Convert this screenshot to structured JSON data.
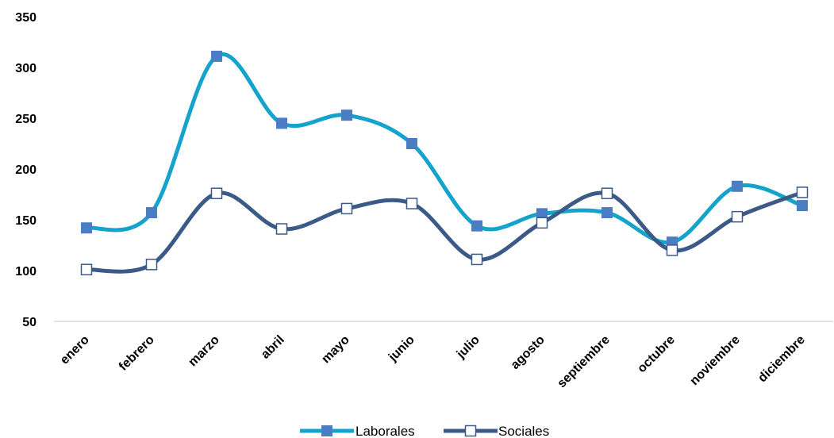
{
  "chart_data": {
    "type": "line",
    "title": "",
    "xlabel": "",
    "ylabel": "",
    "categories": [
      "enero",
      "febrero",
      "marzo",
      "abril",
      "mayo",
      "junio",
      "julio",
      "agosto",
      "septiembre",
      "octubre",
      "noviembre",
      "diciembre"
    ],
    "series": [
      {
        "name": "Laborales",
        "color": "#13A3CC",
        "marker": "filled-square",
        "marker_color": "#4A7DC4",
        "values": [
          142,
          157,
          311,
          245,
          253,
          225,
          144,
          156,
          157,
          128,
          183,
          164
        ]
      },
      {
        "name": "Sociales",
        "color": "#3C5A88",
        "marker": "open-square",
        "marker_color": "#3C5A88",
        "values": [
          101,
          106,
          176,
          141,
          161,
          166,
          111,
          147,
          176,
          120,
          153,
          177
        ]
      }
    ],
    "ylim": [
      50,
      350
    ],
    "yticks": [
      50,
      100,
      150,
      200,
      250,
      300,
      350
    ],
    "grid": false,
    "smooth": true,
    "legend_position": "bottom"
  }
}
